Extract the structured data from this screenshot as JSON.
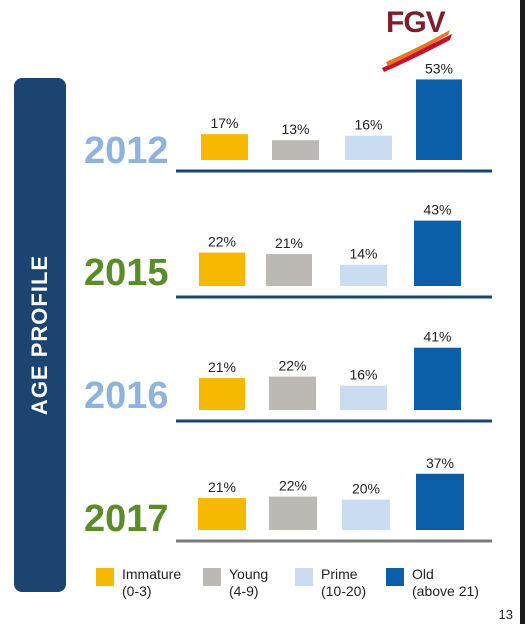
{
  "logo": {
    "text": "FGV"
  },
  "side_banner": {
    "text": "AGE PROFILE"
  },
  "page_number": "13",
  "colors": {
    "immature": "#f6b800",
    "young": "#bcb8b4",
    "prime": "#c9dcf0",
    "old": "#0b5ea8",
    "banner": "#1b4470",
    "year_blue": "#8fb3dc",
    "year_green": "#5b8c2a"
  },
  "chart_data": [
    {
      "type": "bar",
      "title": "2012",
      "categories": [
        "Immature (0-3)",
        "Young (4-9)",
        "Prime (10-20)",
        "Old (above 21)"
      ],
      "values": [
        17,
        13,
        16,
        53
      ],
      "labels": [
        "17%",
        "13%",
        "16%",
        "53%"
      ]
    },
    {
      "type": "bar",
      "title": "2015",
      "categories": [
        "Immature (0-3)",
        "Young (4-9)",
        "Prime (10-20)",
        "Old (above 21)"
      ],
      "values": [
        22,
        21,
        14,
        43
      ],
      "labels": [
        "22%",
        "21%",
        "14%",
        "43%"
      ]
    },
    {
      "type": "bar",
      "title": "2016",
      "categories": [
        "Immature (0-3)",
        "Young (4-9)",
        "Prime (10-20)",
        "Old (above 21)"
      ],
      "values": [
        21,
        22,
        16,
        41
      ],
      "labels": [
        "21%",
        "22%",
        "16%",
        "41%"
      ]
    },
    {
      "type": "bar",
      "title": "2017",
      "categories": [
        "Immature (0-3)",
        "Young (4-9)",
        "Prime (10-20)",
        "Old (above 21)"
      ],
      "values": [
        21,
        22,
        20,
        37
      ],
      "labels": [
        "21%",
        "22%",
        "20%",
        "37%"
      ]
    }
  ],
  "legend": [
    {
      "name": "Immature",
      "range": "(0-3)",
      "color_key": "immature"
    },
    {
      "name": "Young",
      "range": "(4-9)",
      "color_key": "young"
    },
    {
      "name": "Prime",
      "range": "(10-20)",
      "color_key": "prime"
    },
    {
      "name": "Old",
      "range": "(above 21)",
      "color_key": "old"
    }
  ]
}
